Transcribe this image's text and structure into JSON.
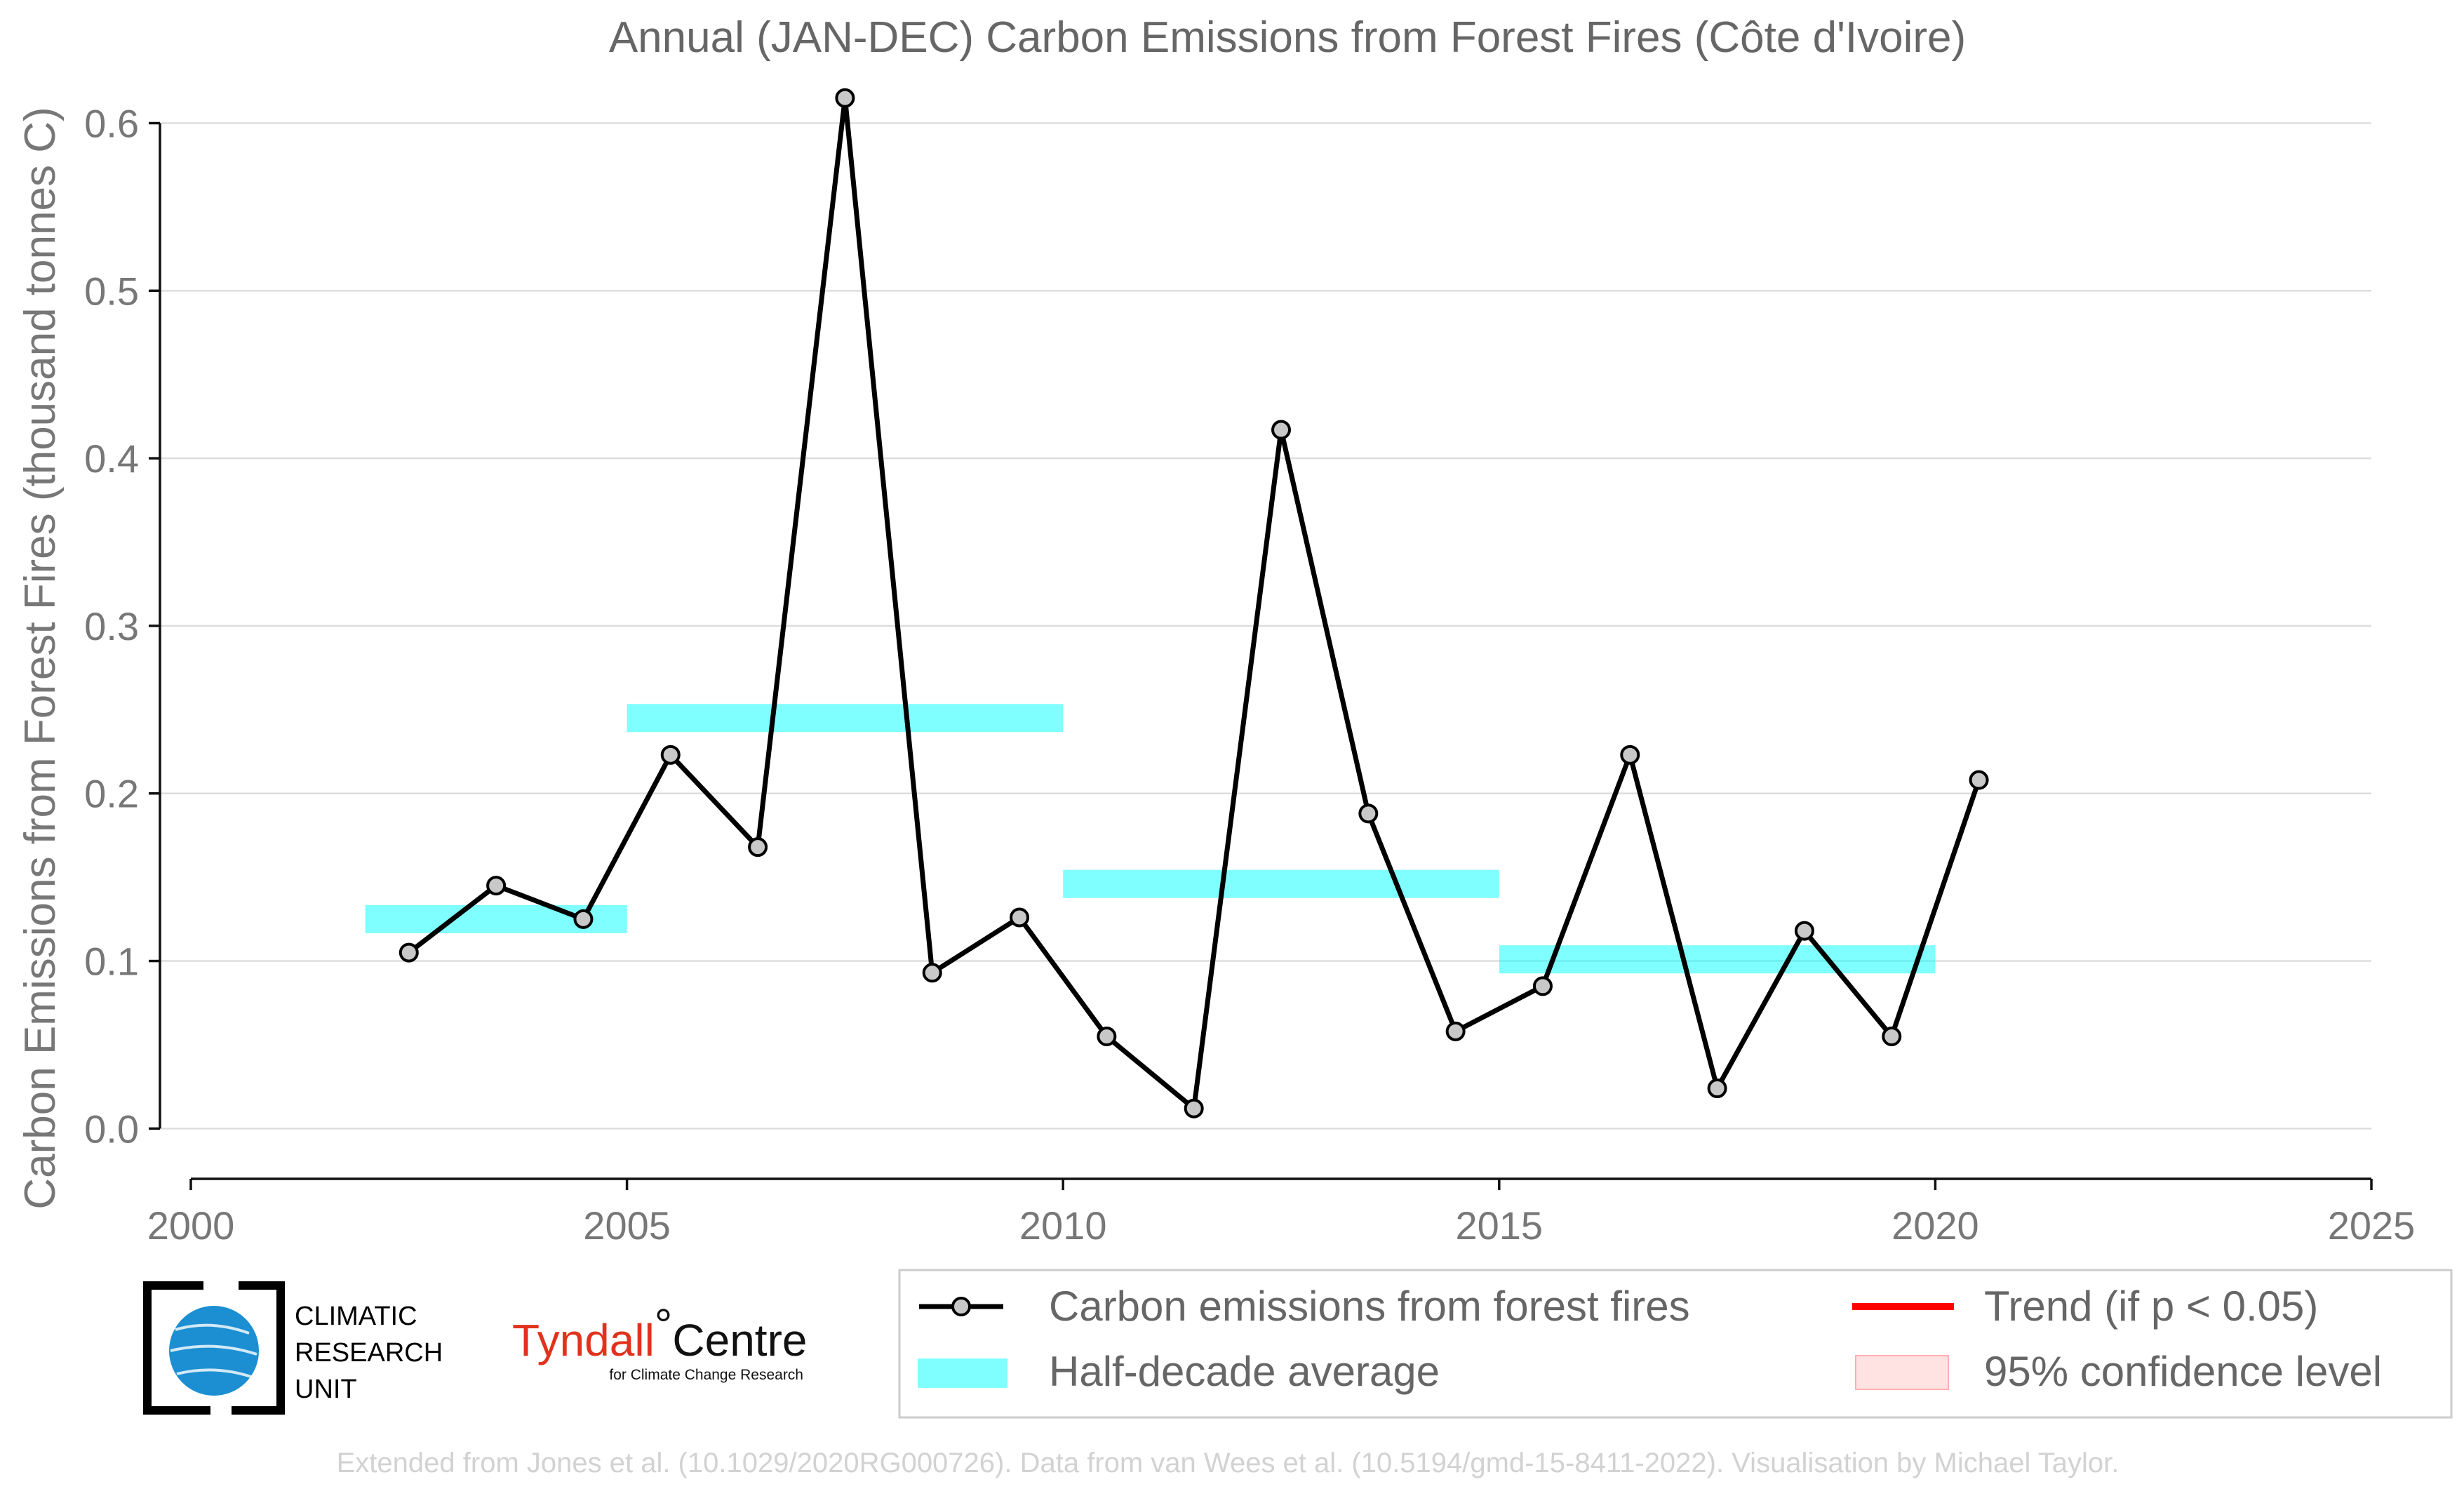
{
  "chart_data": {
    "type": "line",
    "title": "Annual (JAN-DEC) Carbon Emissions from Forest Fires (Côte d'Ivoire)",
    "xlabel": "",
    "ylabel": "Carbon Emissions from Forest Fires (thousand tonnes C)",
    "xlim": [
      2000,
      2025
    ],
    "ylim": [
      -0.03,
      0.64
    ],
    "xticks": [
      2000,
      2005,
      2010,
      2015,
      2020,
      2025
    ],
    "yticks": [
      0.0,
      0.1,
      0.2,
      0.3,
      0.4,
      0.5,
      0.6
    ],
    "xtick_labels": [
      "2000",
      "2005",
      "2010",
      "2015",
      "2020",
      "2025"
    ],
    "ytick_labels": [
      "0.0",
      "0.1",
      "0.2",
      "0.3",
      "0.4",
      "0.5",
      "0.6"
    ],
    "grid": true,
    "series": [
      {
        "name": "Carbon emissions from forest fires",
        "color": "#000000",
        "x": [
          2002.5,
          2003.5,
          2004.5,
          2005.5,
          2006.5,
          2007.5,
          2008.5,
          2009.5,
          2010.5,
          2011.5,
          2012.5,
          2013.5,
          2014.5,
          2015.5,
          2016.5,
          2017.5,
          2018.5,
          2019.5,
          2020.5
        ],
        "values": [
          0.105,
          0.145,
          0.125,
          0.223,
          0.168,
          0.615,
          0.093,
          0.126,
          0.055,
          0.012,
          0.417,
          0.188,
          0.058,
          0.085,
          0.223,
          0.024,
          0.118,
          0.055,
          0.208
        ]
      }
    ],
    "half_decade_average": {
      "name": "Half-decade average",
      "color": "#00ffff",
      "periods": [
        {
          "start": 2002,
          "end": 2005,
          "value": 0.125
        },
        {
          "start": 2005,
          "end": 2010,
          "value": 0.245
        },
        {
          "start": 2010,
          "end": 2015,
          "value": 0.146
        },
        {
          "start": 2015,
          "end": 2020,
          "value": 0.101
        }
      ]
    },
    "legend": {
      "placement": "bottom-right",
      "entries": [
        {
          "label": "Carbon emissions from forest fires",
          "kind": "line-marker",
          "color": "#000000"
        },
        {
          "label": "Trend (if p < 0.05)",
          "kind": "line",
          "color": "#ff0000"
        },
        {
          "label": "Half-decade average",
          "kind": "band",
          "color": "#00ffff"
        },
        {
          "label": "95% confidence level",
          "kind": "patch",
          "color": "#ffcccc"
        }
      ]
    }
  },
  "logos": {
    "cru": {
      "name": "climatic-research-unit-logo",
      "lines": [
        "CLIMATIC",
        "RESEARCH",
        "UNIT"
      ]
    },
    "tyndall": {
      "name": "tyndall-centre-logo",
      "red": "Tyndall",
      "degree": "°",
      "black": "Centre",
      "sub": "for Climate Change Research"
    }
  },
  "footer": "Extended from Jones et al. (10.1029/2020RG000726). Data from van Wees et al. (10.5194/gmd-15-8411-2022). Visualisation by Michael Taylor."
}
